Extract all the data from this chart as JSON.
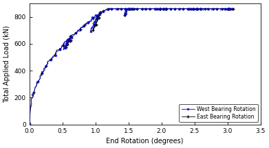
{
  "title": "",
  "xlabel": "End Rotation (degrees)",
  "ylabel": "Total Applied Load (kN)",
  "xlim": [
    0,
    3.5
  ],
  "ylim": [
    0,
    900
  ],
  "xticks": [
    0,
    0.5,
    1.0,
    1.5,
    2.0,
    2.5,
    3.0,
    3.5
  ],
  "yticks": [
    0,
    200,
    400,
    600,
    800
  ],
  "west_color": "#0000cc",
  "east_color": "#000000",
  "legend_labels": [
    "West Bearing Rotation",
    "East Bearing Rotation"
  ],
  "west_marker": "o",
  "east_marker": "+",
  "load_func_coeff": 800,
  "load_func_power": 0.45,
  "cycle_x_targets": [
    0.6,
    1.05,
    1.55,
    2.05,
    2.55,
    3.05
  ],
  "cycle_unload_dx": [
    0.08,
    0.12,
    0.12,
    0.15,
    0.15,
    0.08
  ],
  "cycle_load_drop": [
    0.88,
    0.85,
    0.83,
    0.8,
    0.78,
    0.93
  ]
}
